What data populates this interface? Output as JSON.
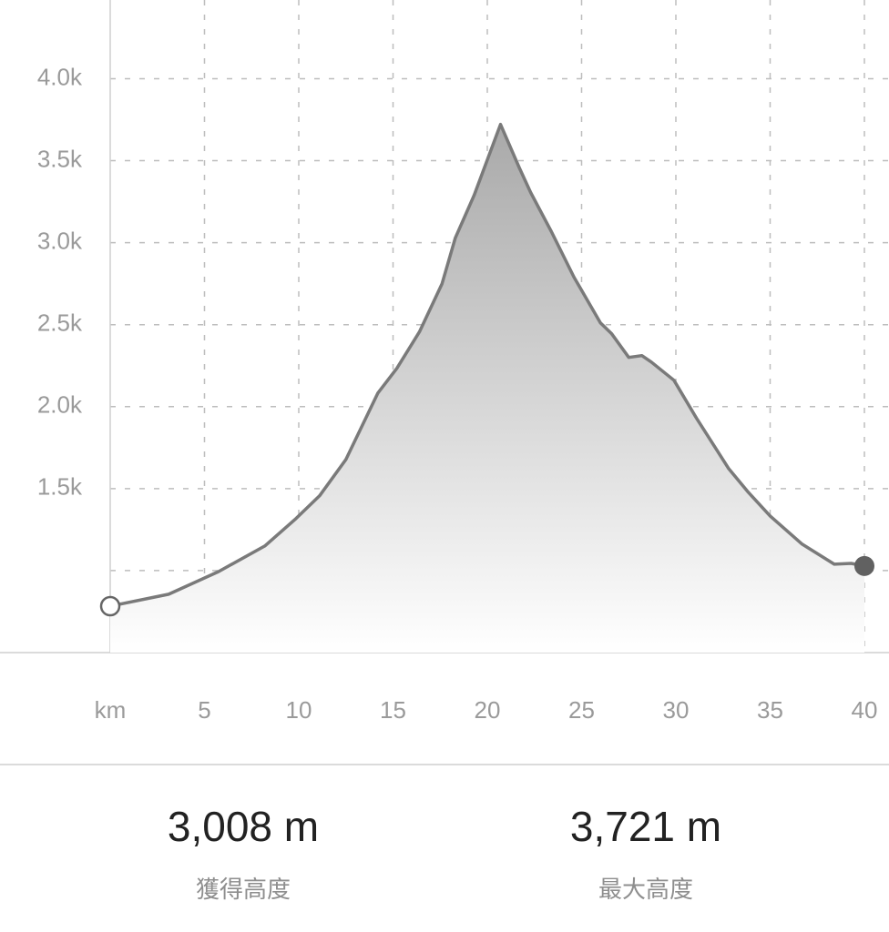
{
  "chart_data": {
    "type": "area",
    "x": [
      0,
      2.6,
      3.1,
      5.75,
      8.2,
      9.85,
      11.1,
      12.5,
      14.2,
      15.2,
      16.4,
      17.6,
      18.3,
      19.3,
      20.7,
      21.7,
      22.3,
      23.4,
      24.6,
      26.0,
      26.6,
      27.5,
      28.2,
      28.7,
      29.9,
      31.1,
      32.8,
      33.8,
      35.0,
      36.7,
      38.4,
      39.3,
      40.0
    ],
    "values": [
      783,
      844,
      856,
      994,
      1150,
      1317,
      1456,
      1678,
      2083,
      2233,
      2456,
      2750,
      3028,
      3289,
      3721,
      3456,
      3306,
      3067,
      2789,
      2511,
      2444,
      2300,
      2311,
      2272,
      2161,
      1928,
      1622,
      1483,
      1333,
      1161,
      1039,
      1044,
      1028
    ],
    "color": "#7a7a7a",
    "xlim": [
      0,
      40
    ],
    "xticks": [
      {
        "value": 0,
        "label": "km"
      },
      5,
      10,
      15,
      20,
      25,
      30,
      35,
      40
    ],
    "ylim": [
      500,
      4480
    ],
    "yticks": [
      {
        "value": 1000,
        "label": null
      },
      {
        "value": 1500,
        "label": "1.5k"
      },
      {
        "value": 2000,
        "label": "2.0k"
      },
      {
        "value": 2500,
        "label": "2.5k"
      },
      {
        "value": 3000,
        "label": "3.0k"
      },
      {
        "value": 3500,
        "label": "3.5k"
      },
      {
        "value": 4000,
        "label": "4.0k"
      }
    ],
    "grid": true
  },
  "stats": [
    {
      "value": "3,008 m",
      "label": "獲得高度"
    },
    {
      "value": "3,721 m",
      "label": "最大高度"
    }
  ]
}
